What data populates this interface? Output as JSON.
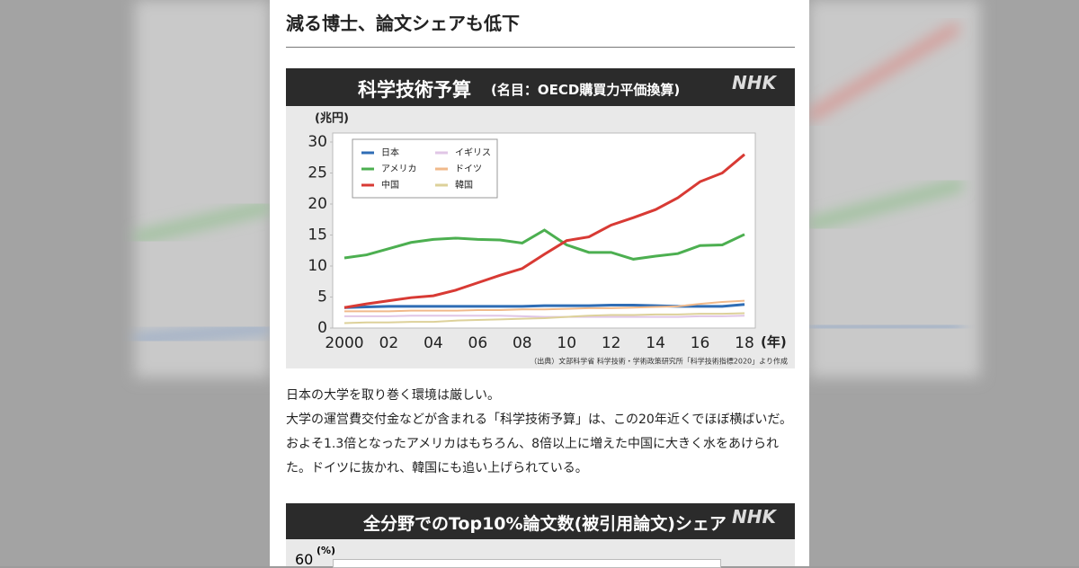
{
  "header": {
    "title": "減る博士、論文シェアも低下"
  },
  "chart_data": {
    "type": "line",
    "title": "科学技術予算",
    "subtitle": "(名目：OECD購買力平価換算)",
    "logo": "NHK",
    "y_label": "(兆円)",
    "x_label": "(年)",
    "source": "（出典）文部科学省 科学技術・学術政策研究所「科学技術指標2020」より作成",
    "x": [
      2000,
      2001,
      2002,
      2003,
      2004,
      2005,
      2006,
      2007,
      2008,
      2009,
      2010,
      2011,
      2012,
      2013,
      2014,
      2015,
      2016,
      2017,
      2018
    ],
    "xlim": [
      2000,
      2018
    ],
    "xticks": [
      2000,
      {
        "value": 2002,
        "label": "02"
      },
      {
        "value": 2004,
        "label": "04"
      },
      {
        "value": 2006,
        "label": "06"
      },
      {
        "value": 2008,
        "label": "08"
      },
      10,
      12,
      14,
      16,
      18
    ],
    "ylim": [
      0,
      30
    ],
    "yticks": [
      0,
      5,
      10,
      15,
      20,
      25,
      30
    ],
    "grid": false,
    "legend": "upper left",
    "series": [
      {
        "name": "日本",
        "color": "#2f6db5",
        "values": [
          3.3,
          3.4,
          3.5,
          3.5,
          3.5,
          3.5,
          3.5,
          3.5,
          3.5,
          3.6,
          3.6,
          3.6,
          3.7,
          3.7,
          3.6,
          3.5,
          3.5,
          3.5,
          3.8
        ]
      },
      {
        "name": "アメリカ",
        "color": "#4caf50",
        "values": [
          11.3,
          11.8,
          12.8,
          13.8,
          14.3,
          14.5,
          14.3,
          14.2,
          13.7,
          15.8,
          13.4,
          12.2,
          12.2,
          11.1,
          11.6,
          12.0,
          13.3,
          13.4,
          15.1
        ]
      },
      {
        "name": "中国",
        "color": "#d83a34",
        "values": [
          3.3,
          3.9,
          4.4,
          4.9,
          5.2,
          6.1,
          7.3,
          8.5,
          9.6,
          11.9,
          14.1,
          14.7,
          16.6,
          17.8,
          19.1,
          21.0,
          23.6,
          25.0,
          28.0
        ]
      },
      {
        "name": "イギリス",
        "color": "#e0c6e6",
        "values": [
          1.9,
          1.9,
          1.9,
          2.0,
          2.0,
          2.0,
          2.0,
          2.0,
          1.9,
          1.8,
          1.8,
          1.8,
          1.8,
          1.8,
          1.8,
          1.8,
          1.9,
          1.9,
          2.0
        ]
      },
      {
        "name": "ドイツ",
        "color": "#f0b98a",
        "values": [
          2.7,
          2.7,
          2.7,
          2.8,
          2.8,
          2.8,
          2.9,
          2.9,
          3.0,
          3.0,
          3.1,
          3.2,
          3.2,
          3.3,
          3.4,
          3.5,
          3.9,
          4.2,
          4.4
        ]
      },
      {
        "name": "韓国",
        "color": "#ddd19a",
        "values": [
          0.8,
          0.9,
          0.9,
          1.0,
          1.0,
          1.2,
          1.3,
          1.4,
          1.5,
          1.6,
          1.8,
          2.0,
          2.1,
          2.1,
          2.2,
          2.2,
          2.3,
          2.3,
          2.4
        ]
      }
    ]
  },
  "body": {
    "paragraphs": [
      "日本の大学を取り巻く環境は厳しい。",
      "大学の運営費交付金などが含まれる「科学技術予算」は、この20年近くでほぼ横ばいだ。およそ1.3倍となったアメリカはもちろん、8倍以上に増えた中国に大きく水をあけられた。ドイツに抜かれ、韓国にも追い上げられている。"
    ]
  },
  "second_chart": {
    "title": "全分野でのTop10%論文数(被引用論文)シェア",
    "logo": "NHK",
    "y_label": "(%)",
    "top_tick": "60"
  }
}
